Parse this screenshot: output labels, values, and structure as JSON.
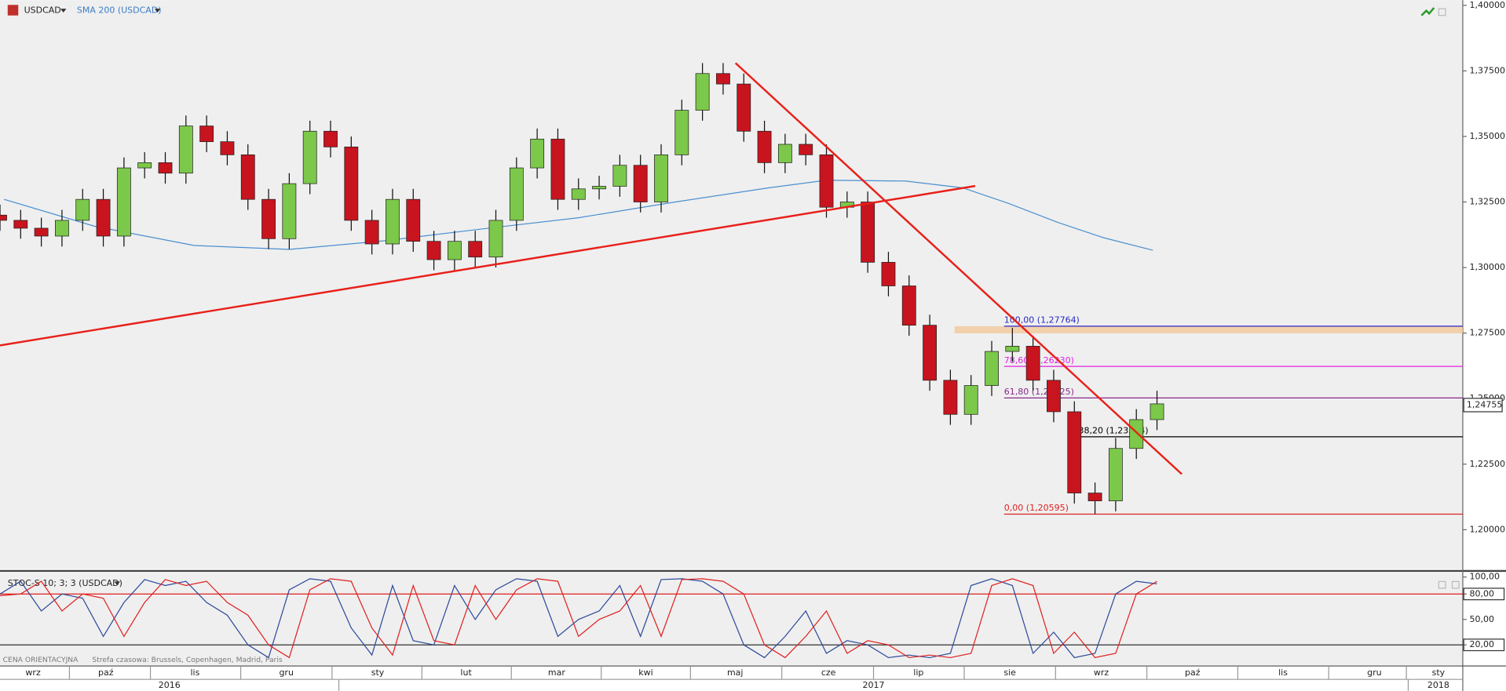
{
  "chart_data": [
    {
      "type": "candlestick",
      "title": "USDCAD",
      "x": [
        0,
        5,
        10,
        15,
        20,
        25,
        30,
        35,
        40,
        45,
        50,
        55,
        60,
        65,
        70,
        75,
        80,
        85,
        90,
        95,
        100,
        105,
        110,
        115,
        120,
        125,
        130,
        135,
        140,
        145,
        150,
        155,
        160,
        165,
        170,
        175,
        180,
        185,
        190,
        195,
        200,
        205,
        210,
        215,
        220,
        225,
        230,
        235,
        240,
        245,
        250,
        255,
        260,
        265,
        270,
        275,
        280
      ],
      "open": [
        1.32,
        1.318,
        1.315,
        1.312,
        1.318,
        1.326,
        1.312,
        1.338,
        1.34,
        1.336,
        1.354,
        1.348,
        1.343,
        1.326,
        1.311,
        1.332,
        1.352,
        1.346,
        1.318,
        1.309,
        1.326,
        1.31,
        1.303,
        1.31,
        1.304,
        1.318,
        1.338,
        1.349,
        1.326,
        1.33,
        1.331,
        1.339,
        1.325,
        1.343,
        1.36,
        1.374,
        1.37,
        1.352,
        1.34,
        1.347,
        1.343,
        1.323,
        1.325,
        1.302,
        1.293,
        1.278,
        1.257,
        1.244,
        1.255,
        1.268,
        1.27,
        1.257,
        1.245,
        1.214,
        1.211,
        1.231,
        1.242
      ],
      "high": [
        1.324,
        1.322,
        1.319,
        1.322,
        1.33,
        1.33,
        1.342,
        1.344,
        1.344,
        1.358,
        1.358,
        1.352,
        1.347,
        1.33,
        1.336,
        1.356,
        1.356,
        1.35,
        1.322,
        1.33,
        1.33,
        1.314,
        1.314,
        1.314,
        1.322,
        1.342,
        1.353,
        1.353,
        1.334,
        1.335,
        1.343,
        1.343,
        1.347,
        1.364,
        1.378,
        1.378,
        1.374,
        1.356,
        1.351,
        1.351,
        1.347,
        1.329,
        1.329,
        1.306,
        1.297,
        1.282,
        1.261,
        1.259,
        1.272,
        1.277,
        1.274,
        1.261,
        1.249,
        1.218,
        1.235,
        1.246,
        1.253
      ],
      "low": [
        1.314,
        1.311,
        1.308,
        1.308,
        1.314,
        1.308,
        1.308,
        1.334,
        1.332,
        1.332,
        1.344,
        1.339,
        1.322,
        1.307,
        1.307,
        1.328,
        1.342,
        1.314,
        1.305,
        1.305,
        1.306,
        1.299,
        1.299,
        1.3,
        1.3,
        1.314,
        1.334,
        1.322,
        1.322,
        1.326,
        1.327,
        1.321,
        1.321,
        1.339,
        1.356,
        1.366,
        1.348,
        1.336,
        1.336,
        1.339,
        1.319,
        1.319,
        1.298,
        1.289,
        1.274,
        1.253,
        1.24,
        1.24,
        1.251,
        1.264,
        1.253,
        1.241,
        1.21,
        1.206,
        1.207,
        1.227,
        1.238
      ],
      "close": [
        1.318,
        1.315,
        1.312,
        1.318,
        1.326,
        1.312,
        1.338,
        1.34,
        1.336,
        1.354,
        1.348,
        1.343,
        1.326,
        1.311,
        1.332,
        1.352,
        1.346,
        1.318,
        1.309,
        1.326,
        1.31,
        1.303,
        1.31,
        1.304,
        1.318,
        1.338,
        1.349,
        1.326,
        1.33,
        1.331,
        1.339,
        1.325,
        1.343,
        1.36,
        1.374,
        1.37,
        1.352,
        1.34,
        1.347,
        1.343,
        1.323,
        1.325,
        1.302,
        1.293,
        1.278,
        1.257,
        1.244,
        1.255,
        1.268,
        1.27,
        1.257,
        1.245,
        1.214,
        1.211,
        1.231,
        1.242,
        1.248
      ],
      "up_color": "#7cc84a",
      "down_color": "#c8141e",
      "series": [
        {
          "name": "SMA 200 (USDCAD)",
          "color": "#4a8fd0",
          "x": [
            1,
            23,
            47,
            70,
            93,
            116,
            140,
            163,
            186,
            200,
            219,
            233,
            244,
            256,
            267,
            279
          ],
          "values": [
            1.326,
            1.3157,
            1.3084,
            1.3069,
            1.3102,
            1.3146,
            1.319,
            1.3249,
            1.3304,
            1.3333,
            1.333,
            1.3304,
            1.3245,
            1.3172,
            1.3114,
            1.3066
          ]
        }
      ],
      "trendlines": [
        {
          "color": "#e8201a",
          "x": [
            0,
            236
          ],
          "values": [
            1.2703,
            1.3311
          ]
        },
        {
          "color": "#e8201a",
          "x": [
            178,
            286
          ],
          "values": [
            1.378,
            1.2212
          ]
        }
      ],
      "zone": {
        "color": "#f2c89a",
        "x": [
          231,
          354
        ],
        "y": [
          1.2749,
          1.2776
        ]
      },
      "fib_levels": [
        {
          "label": "100,00 (1,27764)",
          "value": 1.27764,
          "color": "#2828c8",
          "x": 243
        },
        {
          "label": "78,60 (1,26230)",
          "value": 1.2623,
          "color": "#e020e0",
          "x": 243
        },
        {
          "label": "61,80 (1,25025)",
          "value": 1.25025,
          "color": "#8a2a8a",
          "x": 243
        },
        {
          "label": "38,20 (1,23544)",
          "value": 1.23544,
          "color": "#000000",
          "x": 261
        },
        {
          "label": "0,00 (1,20595)",
          "value": 1.20595,
          "color": "#e02020",
          "x": 243
        }
      ],
      "last_price": {
        "value": 1.24755,
        "label": "1,24755"
      },
      "xlim": [
        0,
        354
      ],
      "ylim": [
        1.185,
        1.402
      ],
      "yticks": [
        {
          "value": 1.2,
          "label": "1,20000"
        },
        {
          "value": 1.225,
          "label": "1,22500"
        },
        {
          "value": 1.25,
          "label": "1,25000"
        },
        {
          "value": 1.275,
          "label": "1,27500"
        },
        {
          "value": 1.3,
          "label": "1,30000"
        },
        {
          "value": 1.325,
          "label": "1,32500"
        },
        {
          "value": 1.35,
          "label": "1,35000"
        },
        {
          "value": 1.375,
          "label": "1,37500"
        },
        {
          "value": 1.4,
          "label": "1,40000"
        }
      ],
      "xticks": [
        {
          "value": 8,
          "label": "wrz"
        },
        {
          "value": 25.6,
          "label": "paź"
        },
        {
          "value": 47.2,
          "label": "lis"
        },
        {
          "value": 69.3,
          "label": "gru"
        },
        {
          "value": 91.4,
          "label": "sty"
        },
        {
          "value": 112.8,
          "label": "lut"
        },
        {
          "value": 134.7,
          "label": "mar"
        },
        {
          "value": 156.3,
          "label": "kwi"
        },
        {
          "value": 177.9,
          "label": "maj"
        },
        {
          "value": 200.5,
          "label": "cze"
        },
        {
          "value": 222.3,
          "label": "lip"
        },
        {
          "value": 244.4,
          "label": "sie"
        },
        {
          "value": 266.5,
          "label": "wrz"
        },
        {
          "value": 288.6,
          "label": "paź"
        },
        {
          "value": 310.5,
          "label": "lis"
        },
        {
          "value": 332.6,
          "label": "gru"
        },
        {
          "value": 348.1,
          "label": "sty"
        }
      ],
      "year_ticks": [
        {
          "value": 41,
          "label": "2016"
        },
        {
          "value": 211.4,
          "label": "2017"
        },
        {
          "value": 348.1,
          "label": "2018"
        }
      ]
    },
    {
      "type": "line",
      "title": "STOC-S 10; 3; 3 (USDCAD)",
      "x": [
        0,
        5,
        10,
        15,
        20,
        25,
        30,
        35,
        40,
        45,
        50,
        55,
        60,
        65,
        70,
        75,
        80,
        85,
        90,
        95,
        100,
        105,
        110,
        115,
        120,
        125,
        130,
        135,
        140,
        145,
        150,
        155,
        160,
        165,
        170,
        175,
        180,
        185,
        190,
        195,
        200,
        205,
        210,
        215,
        220,
        225,
        230,
        235,
        240,
        245,
        250,
        255,
        260,
        265,
        270,
        275,
        280
      ],
      "series": [
        {
          "color": "#2c4a9a",
          "values": [
            80,
            95,
            60,
            80,
            75,
            30,
            70,
            97,
            90,
            95,
            70,
            55,
            20,
            5,
            85,
            98,
            95,
            40,
            8,
            90,
            25,
            20,
            90,
            50,
            85,
            98,
            95,
            30,
            50,
            60,
            90,
            30,
            97,
            98,
            95,
            80,
            20,
            5,
            30,
            60,
            10,
            25,
            20,
            5,
            8,
            5,
            10,
            90,
            98,
            90,
            10,
            35,
            5,
            10,
            80,
            95,
            92
          ]
        },
        {
          "color": "#e02020",
          "values": [
            78,
            80,
            95,
            60,
            80,
            75,
            30,
            70,
            97,
            90,
            95,
            70,
            55,
            20,
            5,
            85,
            98,
            95,
            40,
            8,
            90,
            25,
            20,
            90,
            50,
            85,
            98,
            95,
            30,
            50,
            60,
            90,
            30,
            97,
            98,
            95,
            80,
            20,
            5,
            30,
            60,
            10,
            25,
            20,
            5,
            8,
            5,
            10,
            90,
            98,
            90,
            10,
            35,
            5,
            10,
            80,
            95
          ]
        }
      ],
      "levels": [
        {
          "value": 80,
          "color": "#e02020"
        },
        {
          "value": 20,
          "color": "#333333"
        }
      ],
      "annotations": [
        "CENA ORIENTACYJNA",
        "Strefa czasowa: Brussels, Copenhagen, Madrid, Paris"
      ],
      "xlim": [
        0,
        354
      ],
      "ylim": [
        -3.7,
        104.9
      ],
      "yticks": [
        {
          "value": 20,
          "label": "20,00"
        },
        {
          "value": 50,
          "label": "50,00"
        },
        {
          "value": 80,
          "label": "80,00"
        },
        {
          "value": 100,
          "label": "100,00"
        }
      ]
    }
  ]
}
